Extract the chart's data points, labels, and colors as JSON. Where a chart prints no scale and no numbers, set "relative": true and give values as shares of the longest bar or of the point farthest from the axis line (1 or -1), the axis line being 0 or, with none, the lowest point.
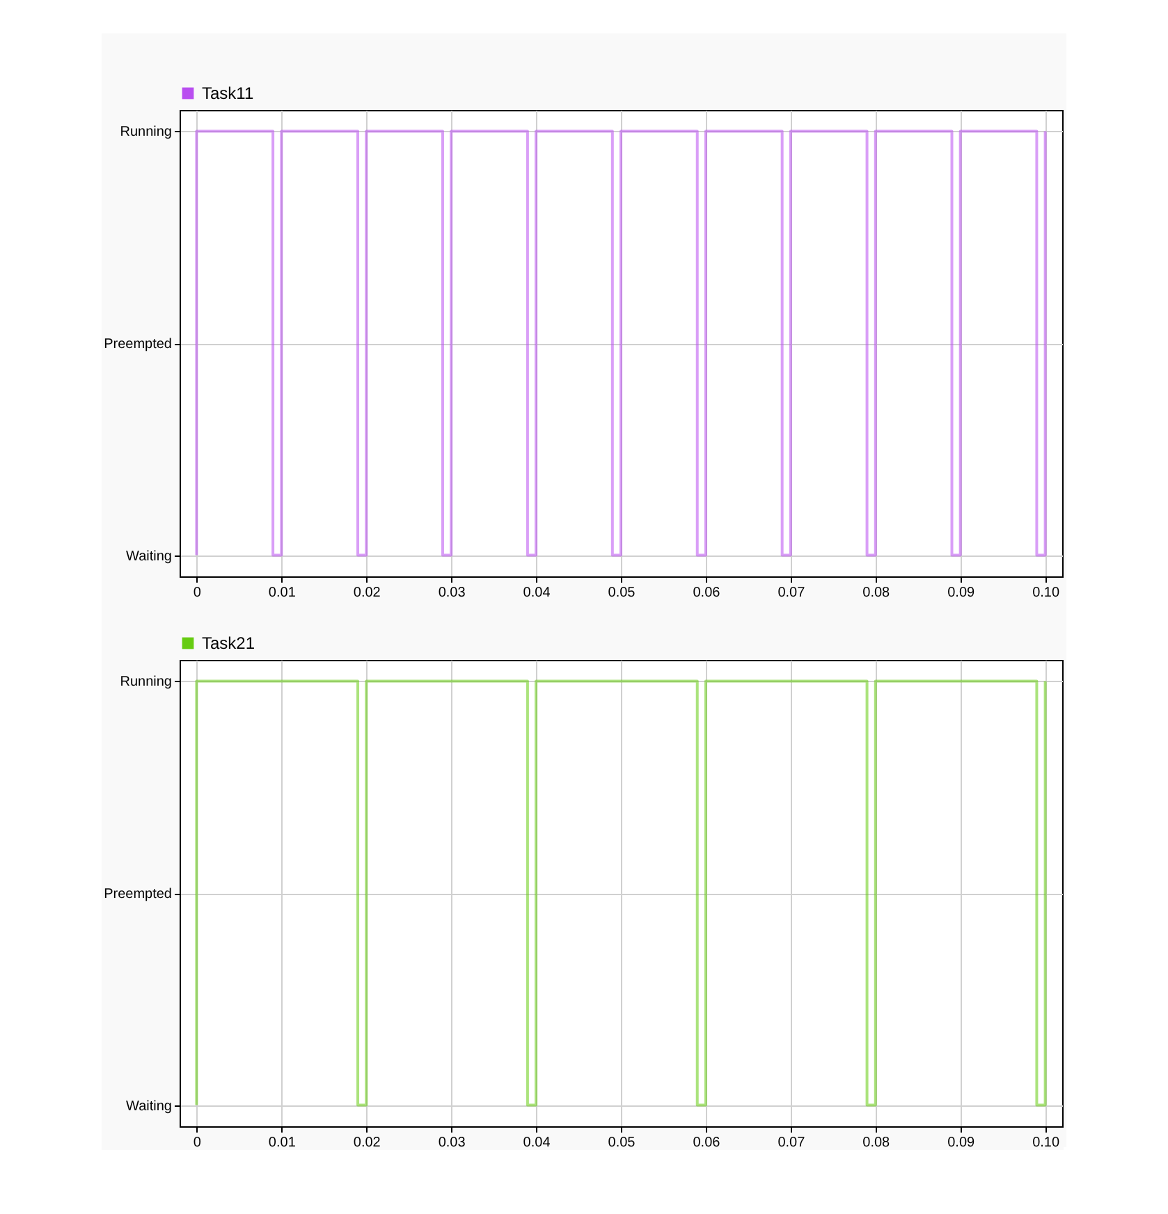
{
  "chart_data": [
    {
      "type": "step",
      "relative": true,
      "legend": "top left",
      "grid": true,
      "xlim": [
        -0.002,
        0.102
      ],
      "xticks": [
        0,
        0.01,
        0.02,
        0.03,
        0.04,
        0.05,
        0.06,
        0.07,
        0.08,
        0.09,
        {
          "value": 0.1,
          "label": "0.10"
        }
      ],
      "annotations": [
        "Running",
        "Preempted",
        "Waiting"
      ],
      "series": [
        {
          "name": "Task11",
          "color": "#b94ef0",
          "x": [
            0,
            0,
            0.009,
            0.01,
            0.019,
            0.02,
            0.029,
            0.03,
            0.039,
            0.04,
            0.049,
            0.05,
            0.059,
            0.06,
            0.069,
            0.07,
            0.079,
            0.08,
            0.089,
            0.09,
            0.099,
            0.1
          ],
          "values": [
            0,
            1,
            0,
            1,
            0,
            1,
            0,
            1,
            0,
            1,
            0,
            1,
            0,
            1,
            0,
            1,
            0,
            1,
            0,
            1,
            0,
            1
          ]
        }
      ]
    },
    {
      "type": "step",
      "relative": true,
      "legend": "top left",
      "grid": true,
      "xlim": [
        -0.002,
        0.102
      ],
      "xticks": [
        0,
        0.01,
        0.02,
        0.03,
        0.04,
        0.05,
        0.06,
        0.07,
        0.08,
        0.09,
        {
          "value": 0.1,
          "label": "0.10"
        }
      ],
      "annotations": [
        "Running",
        "Preempted",
        "Waiting"
      ],
      "series": [
        {
          "name": "Task21",
          "color": "#66cc11",
          "x": [
            0,
            0,
            0.019,
            0.02,
            0.039,
            0.04,
            0.059,
            0.06,
            0.079,
            0.08,
            0.099,
            0.1
          ],
          "values": [
            0,
            1,
            0,
            1,
            0,
            1,
            0,
            1,
            0,
            1,
            0,
            1
          ]
        }
      ]
    }
  ]
}
